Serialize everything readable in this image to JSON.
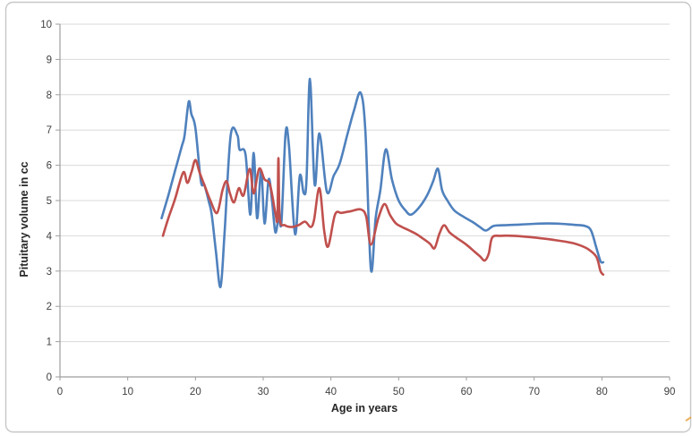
{
  "canvas": {
    "background": "#ffffff",
    "frame_color": "#c7c7c7"
  },
  "chart_data": {
    "type": "line",
    "title": "",
    "xlabel": "Age in years",
    "ylabel": "Pituitary volume in cc",
    "xlim": [
      0,
      90
    ],
    "ylim": [
      0,
      10
    ],
    "x_ticks": [
      0,
      10,
      20,
      30,
      40,
      50,
      60,
      70,
      80,
      90
    ],
    "y_ticks": [
      0,
      1,
      2,
      3,
      4,
      5,
      6,
      7,
      8,
      9,
      10
    ],
    "grid": "horizontal-only",
    "legend": "none",
    "style": {
      "gridline_color": "#d9d9d9",
      "axis_color": "#9e9e9e",
      "tick_text_color": "#3f3f3f",
      "line_width": 2.6,
      "smoothed": true
    },
    "series": [
      {
        "name": "series-1-blue",
        "color": "#4F81BD",
        "points": [
          [
            15,
            4.5
          ],
          [
            16,
            5.15
          ],
          [
            17,
            5.85
          ],
          [
            18,
            6.55
          ],
          [
            18.4,
            6.85
          ],
          [
            19,
            7.8
          ],
          [
            19.4,
            7.45
          ],
          [
            20,
            7.05
          ],
          [
            20.8,
            5.55
          ],
          [
            21.3,
            5.45
          ],
          [
            22,
            4.95
          ],
          [
            22.4,
            4.6
          ],
          [
            23,
            3.6
          ],
          [
            23.7,
            2.55
          ],
          [
            24.3,
            4.1
          ],
          [
            25.2,
            6.85
          ],
          [
            26.2,
            6.85
          ],
          [
            26.5,
            6.45
          ],
          [
            27.4,
            6.3
          ],
          [
            28.1,
            4.6
          ],
          [
            28.6,
            6.35
          ],
          [
            29.1,
            4.5
          ],
          [
            29.7,
            5.85
          ],
          [
            30.2,
            4.35
          ],
          [
            30.8,
            5.6
          ],
          [
            31.3,
            5.0
          ],
          [
            31.8,
            4.1
          ],
          [
            32.3,
            4.55
          ],
          [
            32.7,
            4.4
          ],
          [
            33.3,
            6.9
          ],
          [
            33.8,
            6.55
          ],
          [
            34.7,
            4.05
          ],
          [
            35.4,
            5.7
          ],
          [
            36,
            5.2
          ],
          [
            36.4,
            5.6
          ],
          [
            36.9,
            8.45
          ],
          [
            37.6,
            5.45
          ],
          [
            38.3,
            6.9
          ],
          [
            39.4,
            5.25
          ],
          [
            40.4,
            5.7
          ],
          [
            41.3,
            6.05
          ],
          [
            42.4,
            6.85
          ],
          [
            43.4,
            7.55
          ],
          [
            44.4,
            8.05
          ],
          [
            45.1,
            6.9
          ],
          [
            45.9,
            3.05
          ],
          [
            46.6,
            4.5
          ],
          [
            47.3,
            5.3
          ],
          [
            48.1,
            6.45
          ],
          [
            49,
            5.6
          ],
          [
            50,
            5.0
          ],
          [
            51,
            4.72
          ],
          [
            51.8,
            4.6
          ],
          [
            53,
            4.8
          ],
          [
            54.2,
            5.15
          ],
          [
            55.1,
            5.55
          ],
          [
            55.8,
            5.9
          ],
          [
            56.4,
            5.3
          ],
          [
            57.2,
            5.0
          ],
          [
            58.2,
            4.72
          ],
          [
            59.5,
            4.55
          ],
          [
            61,
            4.38
          ],
          [
            62,
            4.25
          ],
          [
            62.9,
            4.15
          ],
          [
            64,
            4.28
          ],
          [
            65.5,
            4.3
          ],
          [
            68,
            4.32
          ],
          [
            70,
            4.34
          ],
          [
            72,
            4.35
          ],
          [
            74,
            4.34
          ],
          [
            76,
            4.31
          ],
          [
            77.5,
            4.28
          ],
          [
            78.4,
            4.15
          ],
          [
            79.2,
            3.65
          ],
          [
            79.8,
            3.28
          ],
          [
            80.2,
            3.25
          ]
        ]
      },
      {
        "name": "series-2-red",
        "color": "#C0504D",
        "points": [
          [
            15.2,
            4.0
          ],
          [
            16,
            4.5
          ],
          [
            17,
            5.05
          ],
          [
            18.2,
            5.8
          ],
          [
            18.8,
            5.5
          ],
          [
            19.4,
            5.8
          ],
          [
            20,
            6.15
          ],
          [
            20.6,
            5.8
          ],
          [
            21.4,
            5.4
          ],
          [
            22.2,
            5.0
          ],
          [
            23.2,
            4.65
          ],
          [
            24,
            5.3
          ],
          [
            24.6,
            5.55
          ],
          [
            25.1,
            5.2
          ],
          [
            25.7,
            4.95
          ],
          [
            26.4,
            5.35
          ],
          [
            27.1,
            5.15
          ],
          [
            28,
            5.9
          ],
          [
            28.6,
            5.2
          ],
          [
            29.4,
            5.9
          ],
          [
            30.2,
            5.6
          ],
          [
            31,
            5.45
          ],
          [
            31.8,
            4.65
          ],
          [
            32.1,
            4.5
          ],
          [
            32.25,
            6.2
          ],
          [
            32.45,
            4.5
          ],
          [
            33.2,
            4.3
          ],
          [
            34.2,
            4.25
          ],
          [
            35.2,
            4.3
          ],
          [
            36.2,
            4.4
          ],
          [
            37,
            4.25
          ],
          [
            37.5,
            4.45
          ],
          [
            38.3,
            5.35
          ],
          [
            39,
            4.15
          ],
          [
            39.6,
            3.7
          ],
          [
            40.6,
            4.6
          ],
          [
            41.6,
            4.65
          ],
          [
            43,
            4.7
          ],
          [
            44.4,
            4.75
          ],
          [
            45.2,
            4.55
          ],
          [
            45.9,
            3.75
          ],
          [
            47,
            4.5
          ],
          [
            47.9,
            4.9
          ],
          [
            48.7,
            4.6
          ],
          [
            49.6,
            4.35
          ],
          [
            50.5,
            4.25
          ],
          [
            51.6,
            4.15
          ],
          [
            52.6,
            4.05
          ],
          [
            53.6,
            3.92
          ],
          [
            54.6,
            3.78
          ],
          [
            55.3,
            3.65
          ],
          [
            56,
            4.05
          ],
          [
            56.7,
            4.3
          ],
          [
            57.5,
            4.1
          ],
          [
            58.5,
            3.95
          ],
          [
            60,
            3.75
          ],
          [
            61.2,
            3.55
          ],
          [
            62,
            3.42
          ],
          [
            62.7,
            3.3
          ],
          [
            63.3,
            3.5
          ],
          [
            63.8,
            3.95
          ],
          [
            65,
            4.0
          ],
          [
            67,
            4.0
          ],
          [
            69,
            3.97
          ],
          [
            71,
            3.93
          ],
          [
            73,
            3.88
          ],
          [
            75,
            3.82
          ],
          [
            76.5,
            3.75
          ],
          [
            78,
            3.62
          ],
          [
            79.2,
            3.4
          ],
          [
            79.8,
            3.0
          ],
          [
            80.2,
            2.9
          ]
        ]
      }
    ]
  }
}
